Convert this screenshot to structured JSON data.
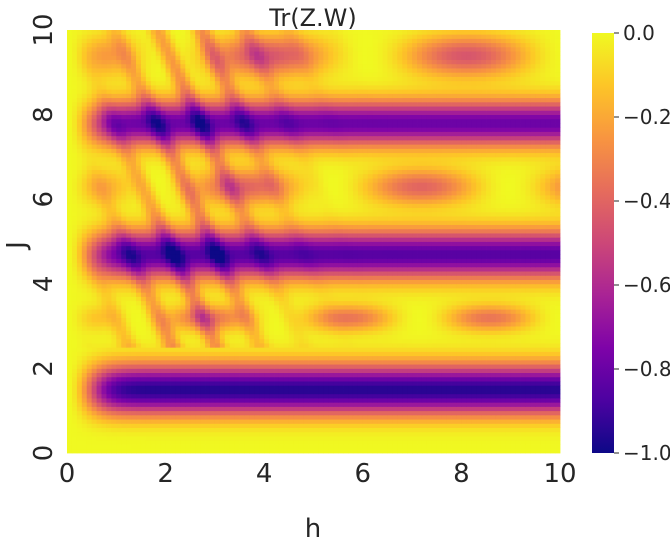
{
  "chart_data": {
    "type": "heatmap",
    "title": "Tr(Z.W)",
    "xlabel": "h",
    "ylabel": "J",
    "xlim": [
      0,
      10
    ],
    "ylim": [
      0,
      10
    ],
    "x_ticks": [
      0,
      2,
      4,
      6,
      8,
      10
    ],
    "y_ticks": [
      0,
      2,
      4,
      6,
      8,
      10
    ],
    "x_tick_labels": [
      "0",
      "2",
      "4",
      "6",
      "8",
      "10"
    ],
    "y_tick_labels": [
      "0",
      "2",
      "4",
      "6",
      "8",
      "10"
    ],
    "colormap": "plasma",
    "colorbar": {
      "range": [
        -1.0,
        0.0
      ],
      "ticks": [
        0.0,
        -0.2,
        -0.4,
        -0.6,
        -0.8,
        -1.0
      ],
      "tick_labels": [
        "0.0",
        "−0.2",
        "−0.4",
        "−0.6",
        "−0.8",
        "−1.0"
      ]
    },
    "grid": false,
    "dark_bands_J": [
      1.5,
      4.7,
      7.8
    ],
    "light_ridges_J": [
      3.2,
      6.3,
      9.4
    ]
  }
}
